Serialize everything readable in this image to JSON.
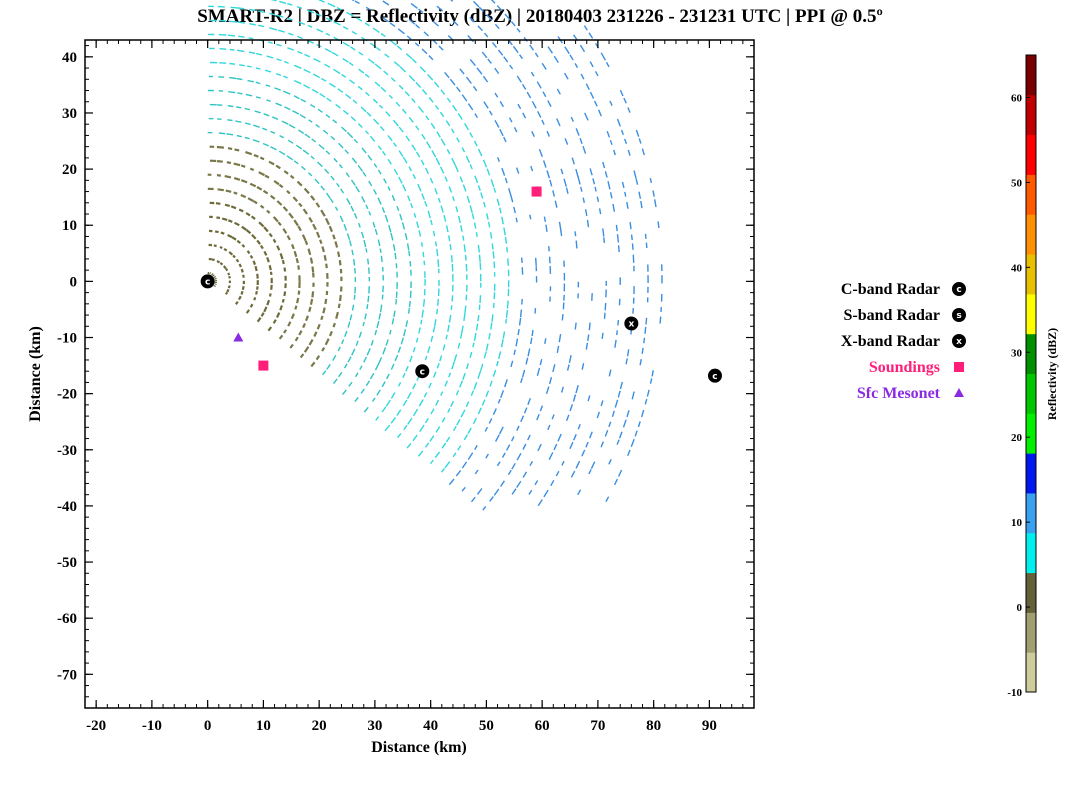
{
  "chart_data": {
    "type": "scatter",
    "subtype": "radar-ppi",
    "title": "SMART-R2 | DBZ = Reflectivity (dBZ) | 20180403 231226 - 231231 UTC | PPI @ 0.5º",
    "xlabel": "Distance (km)",
    "ylabel": "Distance (km)",
    "xlim": [
      -22,
      98
    ],
    "ylim": [
      -76,
      43
    ],
    "xticks": [
      -20,
      -10,
      0,
      10,
      20,
      30,
      40,
      50,
      60,
      70,
      80,
      90
    ],
    "yticks": [
      40,
      30,
      20,
      10,
      0,
      -10,
      -20,
      -30,
      -40,
      -50,
      -60,
      -70
    ],
    "grid": false,
    "sector": {
      "radar_x": 0,
      "radar_y": 0,
      "azimuth_start_deg": 0,
      "azimuth_end_deg": 130,
      "max_range_km": 83,
      "range_spacing_km": 2.5
    },
    "reflectivity_zones": [
      {
        "max_range_km": 14,
        "dbz": 2,
        "color": "#6e6b3a"
      },
      {
        "max_range_km": 25,
        "dbz": 0,
        "color": "#7a7848"
      },
      {
        "max_range_km": 38,
        "dbz": 8,
        "color": "#2fc3c3"
      },
      {
        "max_range_km": 55,
        "dbz": 10,
        "color": "#31d7dc"
      },
      {
        "max_range_km": 83,
        "dbz": 14,
        "color": "#3a8ee0"
      }
    ],
    "overlays": [
      {
        "series": "C-band Radar",
        "marker": "C",
        "x": 0,
        "y": 0
      },
      {
        "series": "C-band Radar",
        "marker": "C",
        "x": 38.5,
        "y": -16
      },
      {
        "series": "C-band Radar",
        "marker": "C",
        "x": 91,
        "y": -16.8
      },
      {
        "series": "X-band Radar",
        "marker": "X",
        "x": 76,
        "y": -7.5
      },
      {
        "series": "Soundings",
        "marker": "square",
        "x": 59,
        "y": 16
      },
      {
        "series": "Soundings",
        "marker": "square",
        "x": 10,
        "y": -15
      },
      {
        "series": "Sfc Mesonet",
        "marker": "triangle",
        "x": 5.5,
        "y": -10
      }
    ],
    "legend": {
      "placement": "right",
      "entries": [
        {
          "name": "C-band Radar",
          "marker": "C",
          "color": "#000000"
        },
        {
          "name": "S-band Radar",
          "marker": "S",
          "color": "#000000"
        },
        {
          "name": "X-band Radar",
          "marker": "X",
          "color": "#000000"
        },
        {
          "name": "Soundings",
          "marker": "square",
          "color": "#ff1e78"
        },
        {
          "name": "Sfc Mesonet",
          "marker": "triangle",
          "color": "#8a2be2"
        }
      ]
    },
    "colorbar": {
      "label": "Reflectivity (dBZ)",
      "min": -10,
      "max": 65,
      "ticks": [
        60,
        50,
        40,
        30,
        20,
        10,
        0,
        -10
      ],
      "bins": [
        {
          "from": -10,
          "to": -5,
          "color": "#cdcc9b"
        },
        {
          "from": -5,
          "to": 0,
          "color": "#a09f72"
        },
        {
          "from": 0,
          "to": 5,
          "color": "#64603a"
        },
        {
          "from": 5,
          "to": 10,
          "color": "#00f0f0"
        },
        {
          "from": 10,
          "to": 15,
          "color": "#3aa0f0"
        },
        {
          "from": 15,
          "to": 20,
          "color": "#0018f0"
        },
        {
          "from": 20,
          "to": 25,
          "color": "#00f000"
        },
        {
          "from": 25,
          "to": 30,
          "color": "#00c800"
        },
        {
          "from": 30,
          "to": 35,
          "color": "#009000"
        },
        {
          "from": 35,
          "to": 40,
          "color": "#ffff00"
        },
        {
          "from": 40,
          "to": 45,
          "color": "#e8c000"
        },
        {
          "from": 45,
          "to": 50,
          "color": "#ff9000"
        },
        {
          "from": 50,
          "to": 55,
          "color": "#ff5a00"
        },
        {
          "from": 55,
          "to": 60,
          "color": "#ff0000"
        },
        {
          "from": 60,
          "to": 65,
          "color": "#c00000"
        },
        {
          "from": 65,
          "to": 65,
          "color": "#780000"
        }
      ]
    }
  }
}
